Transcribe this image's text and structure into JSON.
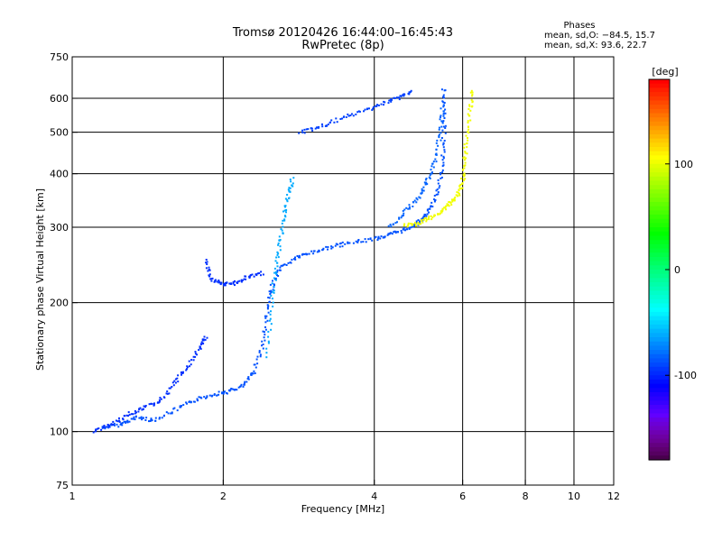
{
  "chart_data": {
    "type": "scatter",
    "title": "Tromsø 20120426 16:44:00–16:45:43",
    "subtitle": "RwPretec (8p)",
    "xlabel": "Frequency [MHz]",
    "ylabel": "Stationary phase Virtual Height [km]",
    "x_scale": "log",
    "y_scale": "log",
    "xlim": [
      1,
      12
    ],
    "ylim": [
      75,
      750
    ],
    "x_ticks": [
      1,
      2,
      4,
      6,
      8,
      10,
      12
    ],
    "x_tick_labels": [
      "1",
      "2",
      "4",
      "6",
      "8",
      "10",
      "12"
    ],
    "y_ticks": [
      75,
      100,
      200,
      300,
      400,
      500,
      600,
      750
    ],
    "y_tick_labels": [
      "75",
      "100",
      "200",
      "300",
      "400",
      "500",
      "600",
      "750"
    ],
    "grid": true,
    "phases_box": {
      "heading": "Phases",
      "line0": "mean, sd,O: −84.5, 15.7",
      "line1": "mean, sd,X: 93.6, 22.7"
    },
    "colorbar": {
      "label": "[deg]",
      "range": [
        -180,
        180
      ],
      "ticks": [
        100,
        0,
        -100
      ],
      "tick_labels": [
        "100",
        "0",
        "-100"
      ]
    },
    "traces": [
      {
        "phase": -85,
        "points": [
          [
            1.15,
            102
          ],
          [
            1.25,
            104
          ],
          [
            1.35,
            108
          ],
          [
            1.45,
            106
          ],
          [
            1.6,
            112
          ],
          [
            1.75,
            118
          ],
          [
            1.9,
            122
          ],
          [
            2.05,
            124
          ],
          [
            2.2,
            128
          ],
          [
            2.3,
            138
          ],
          [
            2.4,
            160
          ],
          [
            2.45,
            190
          ],
          [
            2.5,
            218
          ],
          [
            2.6,
            240
          ],
          [
            2.8,
            255
          ],
          [
            3.0,
            262
          ],
          [
            3.3,
            270
          ],
          [
            3.6,
            276
          ],
          [
            4.0,
            282
          ],
          [
            4.3,
            288
          ],
          [
            4.6,
            296
          ],
          [
            4.9,
            308
          ],
          [
            5.1,
            322
          ],
          [
            5.3,
            350
          ],
          [
            5.45,
            400
          ],
          [
            5.5,
            470
          ],
          [
            5.52,
            560
          ],
          [
            5.5,
            640
          ]
        ]
      },
      {
        "phase": -95,
        "points": [
          [
            1.1,
            100
          ],
          [
            1.2,
            104
          ],
          [
            1.3,
            110
          ],
          [
            1.4,
            114
          ],
          [
            1.5,
            118
          ],
          [
            1.6,
            130
          ],
          [
            1.7,
            142
          ],
          [
            1.8,
            158
          ],
          [
            1.85,
            166
          ]
        ]
      },
      {
        "phase": -80,
        "points": [
          [
            4.3,
            300
          ],
          [
            4.6,
            325
          ],
          [
            4.9,
            352
          ],
          [
            5.1,
            385
          ],
          [
            5.3,
            430
          ],
          [
            5.42,
            500
          ],
          [
            5.48,
            580
          ]
        ]
      },
      {
        "phase": -90,
        "points": [
          [
            2.85,
            500
          ],
          [
            3.1,
            512
          ],
          [
            3.4,
            535
          ],
          [
            3.8,
            560
          ],
          [
            4.2,
            585
          ],
          [
            4.5,
            605
          ],
          [
            4.75,
            622
          ]
        ]
      },
      {
        "phase": -95,
        "points": [
          [
            1.85,
            250
          ],
          [
            1.9,
            226
          ],
          [
            2.0,
            220
          ],
          [
            2.1,
            222
          ],
          [
            2.25,
            230
          ],
          [
            2.4,
            235
          ]
        ]
      },
      {
        "phase": -60,
        "points": [
          [
            2.45,
            150
          ],
          [
            2.5,
            200
          ],
          [
            2.55,
            245
          ],
          [
            2.6,
            280
          ],
          [
            2.65,
            320
          ],
          [
            2.7,
            360
          ],
          [
            2.75,
            390
          ]
        ]
      },
      {
        "phase": 105,
        "points": [
          [
            4.6,
            302
          ],
          [
            4.9,
            306
          ],
          [
            5.2,
            316
          ],
          [
            5.5,
            330
          ],
          [
            5.7,
            342
          ],
          [
            5.85,
            355
          ],
          [
            6.0,
            380
          ],
          [
            6.05,
            420
          ],
          [
            6.1,
            480
          ],
          [
            6.2,
            560
          ],
          [
            6.3,
            630
          ]
        ]
      }
    ],
    "note": "Ionogram echo traces: O-mode (blue, ~-85 deg) and X-mode (yellow, ~+95 deg); sparse scattered echoes at higher frequencies."
  }
}
